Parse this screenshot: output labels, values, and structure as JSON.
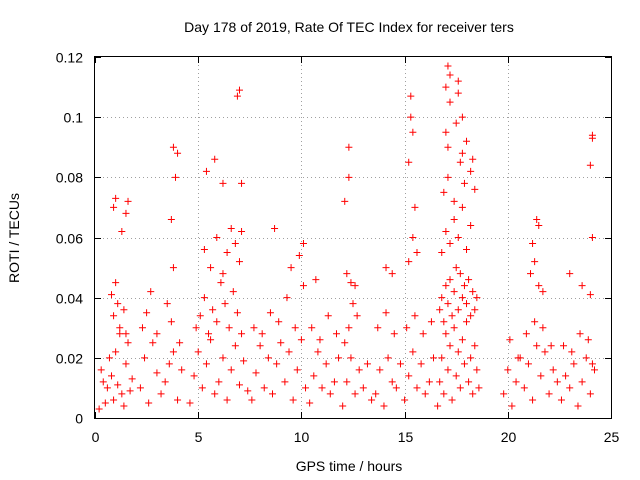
{
  "chart_data": {
    "type": "scatter",
    "title": "Day 178 of 2019, Rate Of TEC Index for receiver ters",
    "xlabel": "GPS time / hours",
    "ylabel": "ROTI / TECUs",
    "xlim": [
      0,
      25
    ],
    "ylim": [
      0,
      0.12
    ],
    "xticks": [
      0,
      5,
      10,
      15,
      20,
      25
    ],
    "xtick_labels": [
      "0",
      "5",
      "10",
      "15",
      "20",
      "25"
    ],
    "yticks": [
      0,
      0.02,
      0.04,
      0.06,
      0.08,
      0.1,
      0.12
    ],
    "ytick_labels": [
      "0",
      "0.02",
      "0.04",
      "0.06",
      "0.08",
      "0.1",
      "0.12"
    ],
    "grid": true,
    "marker": "+",
    "series": [
      {
        "name": "ROTI",
        "color": "#ff0000",
        "x": [
          0.2,
          0.3,
          0.4,
          0.5,
          0.6,
          0.7,
          0.8,
          0.9,
          1.0,
          1.1,
          1.2,
          1.3,
          1.4,
          1.5,
          1.6,
          1.7,
          1.8,
          0.8,
          0.9,
          1.0,
          1.1,
          1.2,
          1.4,
          1.5,
          0.9,
          1.0,
          1.3,
          1.5,
          1.6,
          2.2,
          2.4,
          2.6,
          2.8,
          3.0,
          3.2,
          3.4,
          3.6,
          3.8,
          4.0,
          4.2,
          2.3,
          2.5,
          2.7,
          3.0,
          3.5,
          3.7,
          3.8,
          3.9,
          4.0,
          3.7,
          3.8,
          4.1,
          4.6,
          4.8,
          5.0,
          5.2,
          5.4,
          5.6,
          5.8,
          6.0,
          6.2,
          6.4,
          6.6,
          6.8,
          7.0,
          7.2,
          7.4,
          4.9,
          5.1,
          5.3,
          5.5,
          5.7,
          5.9,
          6.1,
          6.3,
          6.5,
          6.7,
          6.9,
          7.1,
          5.3,
          5.6,
          5.9,
          6.2,
          6.4,
          6.6,
          6.8,
          7.0,
          7.1,
          5.4,
          5.8,
          6.9,
          7.0,
          6.2,
          7.1,
          7.6,
          7.8,
          8.0,
          8.2,
          8.4,
          8.6,
          8.8,
          9.0,
          9.2,
          9.4,
          9.6,
          9.8,
          10.0,
          10.2,
          7.7,
          8.1,
          8.5,
          8.9,
          9.3,
          9.7,
          10.1,
          8.7,
          9.5,
          9.9,
          10.1,
          10.4,
          10.6,
          10.8,
          11.0,
          11.2,
          11.4,
          11.6,
          11.8,
          10.5,
          10.9,
          11.3,
          11.7,
          10.7,
          12.0,
          12.2,
          12.4,
          12.6,
          12.8,
          13.0,
          13.2,
          13.4,
          12.1,
          12.3,
          12.5,
          12.7,
          12.2,
          12.4,
          12.6,
          12.1,
          12.3,
          12.3,
          13.6,
          13.8,
          14.0,
          14.2,
          14.4,
          14.6,
          14.8,
          13.7,
          14.1,
          14.5,
          14.1,
          14.4,
          15.0,
          15.2,
          15.4,
          15.6,
          15.8,
          16.0,
          16.2,
          16.4,
          15.1,
          15.5,
          15.9,
          16.3,
          15.2,
          15.4,
          15.6,
          15.2,
          15.3,
          15.3,
          15.4,
          15.5,
          16.6,
          16.7,
          16.8,
          16.9,
          17.0,
          17.1,
          17.2,
          17.3,
          17.4,
          17.5,
          17.6,
          17.7,
          17.8,
          17.9,
          18.0,
          18.1,
          18.2,
          18.3,
          18.4,
          18.5,
          18.6,
          16.7,
          16.8,
          16.9,
          17.0,
          17.1,
          17.2,
          17.3,
          17.4,
          17.5,
          17.6,
          17.7,
          17.8,
          17.9,
          18.0,
          18.1,
          18.2,
          18.3,
          18.4,
          18.5,
          16.8,
          17.0,
          17.2,
          17.4,
          17.6,
          17.8,
          18.0,
          18.2,
          16.9,
          17.1,
          17.4,
          17.7,
          17.9,
          18.2,
          18.4,
          17.0,
          17.1,
          17.5,
          17.8,
          18.0,
          18.3,
          17.0,
          17.2,
          17.6,
          17.8,
          17.1,
          17.6,
          17.2,
          19.8,
          20.0,
          20.2,
          20.4,
          20.6,
          20.8,
          21.0,
          21.2,
          21.4,
          21.6,
          21.8,
          22.0,
          22.2,
          22.4,
          20.1,
          20.5,
          20.9,
          21.3,
          21.7,
          22.1,
          21.1,
          21.3,
          21.5,
          21.7,
          21.2,
          21.4,
          21.5,
          22.6,
          22.8,
          23.0,
          23.2,
          23.4,
          23.6,
          23.8,
          24.0,
          24.2,
          22.7,
          23.1,
          23.5,
          23.9,
          24.1,
          23.0,
          23.6,
          24.0,
          24.1,
          24.0,
          24.1,
          24.1
        ],
        "y": [
          0.003,
          0.016,
          0.012,
          0.005,
          0.01,
          0.02,
          0.014,
          0.006,
          0.022,
          0.011,
          0.028,
          0.008,
          0.004,
          0.018,
          0.025,
          0.009,
          0.013,
          0.041,
          0.034,
          0.045,
          0.038,
          0.03,
          0.036,
          0.028,
          0.07,
          0.073,
          0.062,
          0.068,
          0.072,
          0.01,
          0.02,
          0.005,
          0.025,
          0.015,
          0.008,
          0.012,
          0.018,
          0.022,
          0.006,
          0.016,
          0.03,
          0.035,
          0.042,
          0.028,
          0.038,
          0.032,
          0.05,
          0.08,
          0.088,
          0.066,
          0.09,
          0.025,
          0.005,
          0.014,
          0.022,
          0.01,
          0.018,
          0.026,
          0.008,
          0.012,
          0.02,
          0.006,
          0.016,
          0.024,
          0.011,
          0.019,
          0.009,
          0.03,
          0.034,
          0.04,
          0.028,
          0.036,
          0.032,
          0.045,
          0.038,
          0.03,
          0.042,
          0.035,
          0.028,
          0.056,
          0.05,
          0.06,
          0.048,
          0.055,
          0.063,
          0.058,
          0.052,
          0.062,
          0.082,
          0.086,
          0.107,
          0.109,
          0.078,
          0.078,
          0.006,
          0.015,
          0.024,
          0.01,
          0.02,
          0.008,
          0.018,
          0.025,
          0.012,
          0.022,
          0.006,
          0.016,
          0.026,
          0.01,
          0.03,
          0.028,
          0.035,
          0.032,
          0.04,
          0.03,
          0.044,
          0.063,
          0.05,
          0.054,
          0.058,
          0.005,
          0.014,
          0.022,
          0.01,
          0.018,
          0.008,
          0.012,
          0.02,
          0.03,
          0.026,
          0.034,
          0.028,
          0.046,
          0.004,
          0.012,
          0.02,
          0.008,
          0.016,
          0.01,
          0.018,
          0.006,
          0.025,
          0.03,
          0.038,
          0.034,
          0.048,
          0.045,
          0.044,
          0.072,
          0.08,
          0.09,
          0.008,
          0.016,
          0.004,
          0.02,
          0.012,
          0.01,
          0.018,
          0.03,
          0.035,
          0.028,
          0.05,
          0.048,
          0.006,
          0.014,
          0.022,
          0.01,
          0.018,
          0.008,
          0.012,
          0.02,
          0.03,
          0.034,
          0.028,
          0.032,
          0.052,
          0.06,
          0.055,
          0.085,
          0.1,
          0.107,
          0.095,
          0.07,
          0.004,
          0.012,
          0.02,
          0.008,
          0.028,
          0.016,
          0.024,
          0.006,
          0.03,
          0.014,
          0.022,
          0.01,
          0.026,
          0.018,
          0.032,
          0.012,
          0.02,
          0.008,
          0.024,
          0.016,
          0.01,
          0.036,
          0.04,
          0.032,
          0.044,
          0.038,
          0.046,
          0.034,
          0.042,
          0.05,
          0.036,
          0.048,
          0.04,
          0.044,
          0.038,
          0.046,
          0.034,
          0.042,
          0.036,
          0.04,
          0.055,
          0.062,
          0.058,
          0.066,
          0.06,
          0.07,
          0.056,
          0.064,
          0.075,
          0.08,
          0.072,
          0.085,
          0.078,
          0.082,
          0.076,
          0.095,
          0.09,
          0.098,
          0.088,
          0.092,
          0.086,
          0.11,
          0.105,
          0.108,
          0.1,
          0.117,
          0.112,
          0.114,
          0.008,
          0.016,
          0.004,
          0.012,
          0.02,
          0.01,
          0.018,
          0.006,
          0.024,
          0.014,
          0.022,
          0.008,
          0.016,
          0.012,
          0.026,
          0.02,
          0.028,
          0.032,
          0.03,
          0.024,
          0.048,
          0.052,
          0.044,
          0.042,
          0.058,
          0.066,
          0.064,
          0.006,
          0.014,
          0.01,
          0.018,
          0.004,
          0.012,
          0.02,
          0.008,
          0.016,
          0.024,
          0.022,
          0.028,
          0.026,
          0.018,
          0.048,
          0.044,
          0.041,
          0.06,
          0.084,
          0.093,
          0.094
        ]
      }
    ]
  }
}
